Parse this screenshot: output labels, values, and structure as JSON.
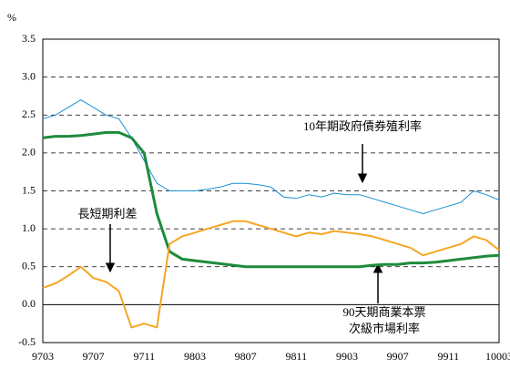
{
  "chart_data": {
    "type": "line",
    "unit_label": "%",
    "categories": [
      "9703",
      null,
      null,
      null,
      "9707",
      null,
      null,
      null,
      "9711",
      null,
      null,
      null,
      "9803",
      null,
      null,
      null,
      "9807",
      null,
      null,
      null,
      "9811",
      null,
      null,
      null,
      "9903",
      null,
      null,
      null,
      "9907",
      null,
      null,
      null,
      "9911",
      null,
      null,
      null,
      "10003"
    ],
    "series": [
      {
        "name": "10年期政府債券殖利率",
        "color": "#1a8fd6",
        "width": 1,
        "values": [
          2.45,
          2.5,
          2.6,
          2.7,
          2.6,
          2.5,
          2.45,
          2.2,
          1.9,
          1.6,
          1.5,
          1.5,
          1.5,
          1.52,
          1.55,
          1.6,
          1.6,
          1.58,
          1.55,
          1.42,
          1.4,
          1.45,
          1.42,
          1.47,
          1.45,
          1.45,
          1.4,
          1.35,
          1.3,
          1.25,
          1.2,
          1.25,
          1.3,
          1.35,
          1.5,
          1.45,
          1.38
        ]
      },
      {
        "name": "90天期商業本票次級市場利率",
        "color": "#1e8b3c",
        "width": 3,
        "values": [
          2.2,
          2.22,
          2.22,
          2.23,
          2.25,
          2.27,
          2.27,
          2.2,
          2.0,
          1.2,
          0.7,
          0.6,
          0.58,
          0.56,
          0.54,
          0.52,
          0.5,
          0.5,
          0.5,
          0.5,
          0.5,
          0.5,
          0.5,
          0.5,
          0.5,
          0.5,
          0.52,
          0.53,
          0.53,
          0.55,
          0.55,
          0.56,
          0.58,
          0.6,
          0.62,
          0.64,
          0.65
        ]
      },
      {
        "name": "長短期利差",
        "color": "#f5a623",
        "width": 2,
        "values": [
          0.22,
          0.28,
          0.38,
          0.5,
          0.35,
          0.3,
          0.18,
          -0.3,
          -0.25,
          -0.3,
          0.8,
          0.9,
          0.95,
          1.0,
          1.05,
          1.1,
          1.1,
          1.05,
          1.0,
          0.95,
          0.9,
          0.95,
          0.93,
          0.97,
          0.95,
          0.93,
          0.9,
          0.85,
          0.8,
          0.75,
          0.65,
          0.7,
          0.75,
          0.8,
          0.9,
          0.85,
          0.72
        ]
      }
    ],
    "annotations": [
      "10年期政府債券殖利率",
      "長短期利差",
      "90天期商業本票",
      "次級市場利率"
    ],
    "ylim": [
      -0.5,
      3.5
    ],
    "yticks": [
      -0.5,
      {
        "value": 0,
        "label": "0.0"
      },
      0.5,
      {
        "value": 1,
        "label": "1.0"
      },
      1.5,
      {
        "value": 2,
        "label": "2.0"
      },
      2.5,
      {
        "value": 3,
        "label": "3.0"
      },
      3.5
    ],
    "grid": true
  }
}
